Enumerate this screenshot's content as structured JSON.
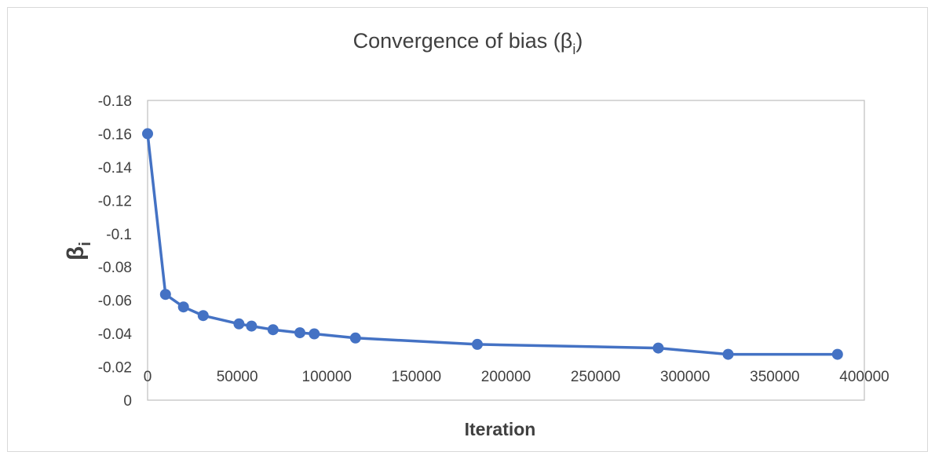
{
  "chart_data": {
    "type": "line",
    "title": "Convergence of bias (β",
    "title_subscript": "i",
    "title_suffix": ")",
    "xlabel": "Iteration",
    "ylabel": "β",
    "ylabel_subscript": "i",
    "xlim": [
      0,
      400000
    ],
    "ylim": [
      0,
      -0.18
    ],
    "x_ticks": [
      "0",
      "50000",
      "100000",
      "150000",
      "200000",
      "250000",
      "300000",
      "350000",
      "400000"
    ],
    "x_tick_values": [
      0,
      50000,
      100000,
      150000,
      200000,
      250000,
      300000,
      350000,
      400000
    ],
    "y_ticks": [
      "-0.18",
      "-0.16",
      "-0.14",
      "-0.12",
      "-0.1",
      "-0.08",
      "-0.06",
      "-0.04",
      "-0.02",
      "0"
    ],
    "y_tick_values": [
      -0.18,
      -0.16,
      -0.14,
      -0.12,
      -0.1,
      -0.08,
      -0.06,
      -0.04,
      -0.02,
      0
    ],
    "grid": false,
    "legend": "none",
    "series": [
      {
        "color": "#4472c4",
        "x": [
          0,
          10000,
          20000,
          31000,
          51000,
          58000,
          70000,
          85000,
          93000,
          116000,
          184000,
          285000,
          324000,
          385000
        ],
        "y": [
          -0.16,
          -0.0635,
          -0.056,
          -0.0508,
          -0.0458,
          -0.0445,
          -0.0423,
          -0.0405,
          -0.0398,
          -0.0373,
          -0.0335,
          -0.0313,
          -0.0275,
          -0.0275
        ]
      }
    ]
  }
}
